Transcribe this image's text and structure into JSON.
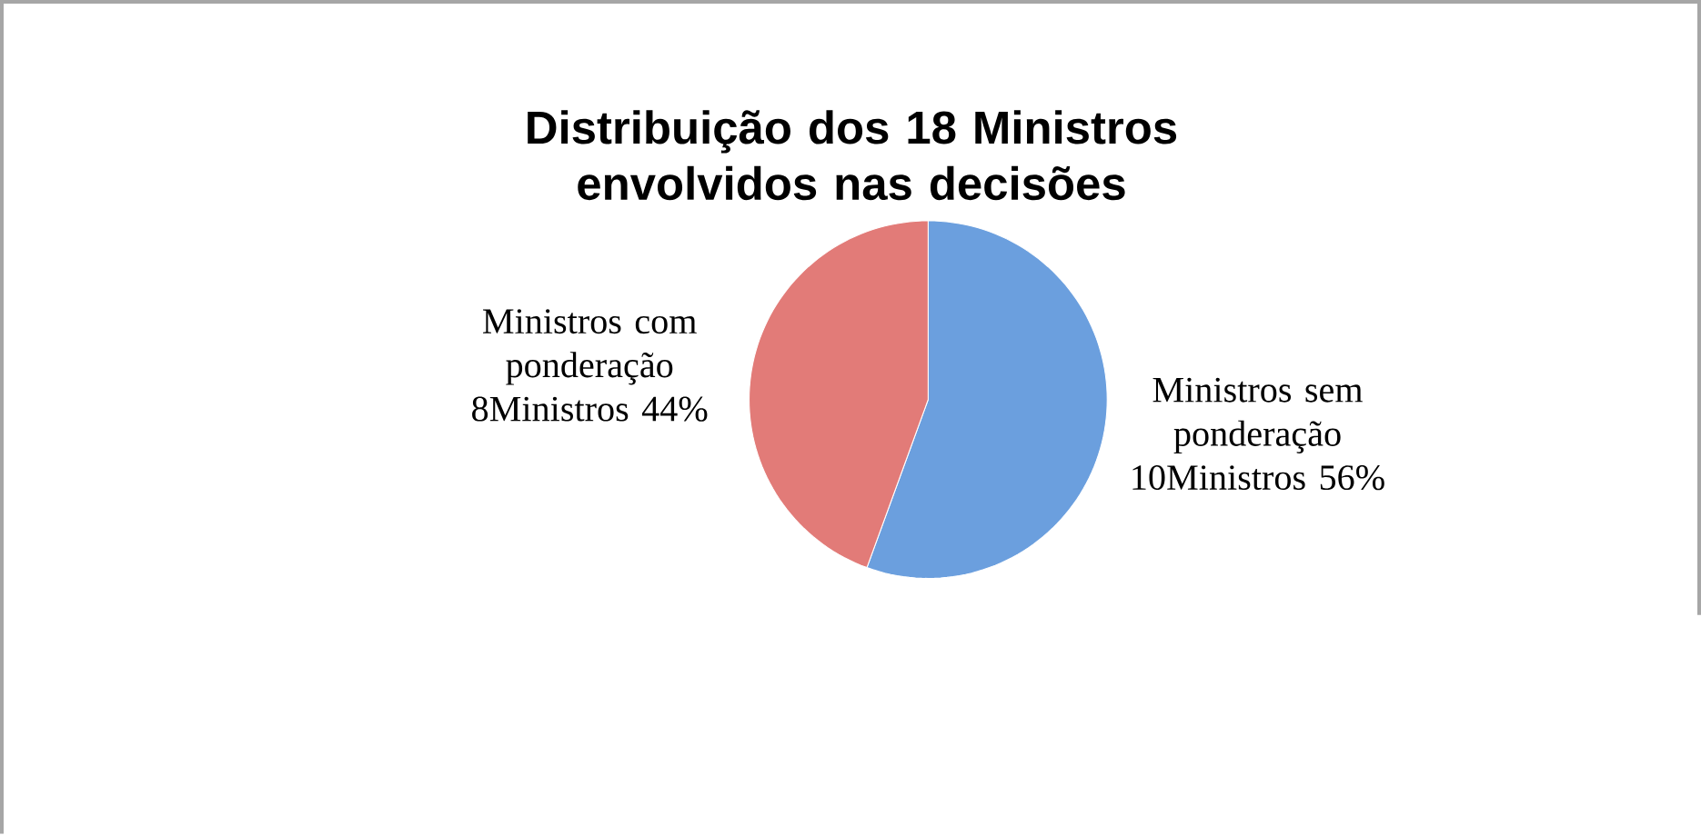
{
  "chart_data": {
    "type": "pie",
    "title": "Distribuição dos 18 Ministros envolvidos nas decisões",
    "categories": [
      "Ministros sem ponderação",
      "Ministros com ponderação"
    ],
    "values": [
      10,
      8
    ],
    "colors": [
      "#6b9fde",
      "#e27b78"
    ],
    "value_labels": [
      "10Ministros 56%",
      "8Ministros 44%"
    ]
  }
}
